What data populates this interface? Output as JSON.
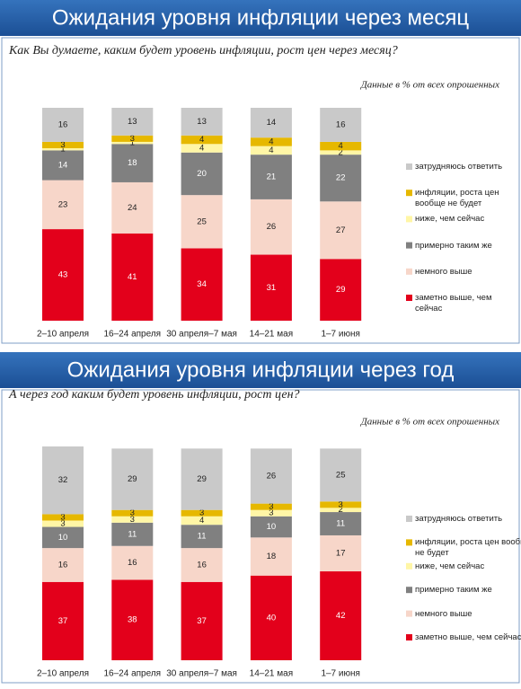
{
  "chart_data": [
    {
      "type": "stacked_bar",
      "title": "Ожидания уровня инфляции через месяц",
      "subtitle": "Как Вы думаете, каким будет уровень инфляции, рост цен через месяц?",
      "note": "Данные в % от всех опрошенных",
      "categories": [
        "2–10 апреля",
        "16–24 апреля",
        "30 апреля–7 мая",
        "14–21 мая",
        "1–7 июня"
      ],
      "series": [
        {
          "name": "заметно выше, чем сейчас",
          "color": "#e3001b",
          "values": [
            43,
            41,
            34,
            31,
            29
          ]
        },
        {
          "name": "немного выше",
          "color": "#f7d6c9",
          "values": [
            23,
            24,
            25,
            26,
            27
          ]
        },
        {
          "name": "примерно таким же",
          "color": "#808080",
          "values": [
            14,
            18,
            20,
            21,
            22
          ]
        },
        {
          "name": "ниже, чем сейчас",
          "color": "#fff6a6",
          "values": [
            1,
            1,
            4,
            4,
            2
          ]
        },
        {
          "name": "инфляции, роста цен вообще не будет",
          "color": "#e6b800",
          "values": [
            3,
            3,
            4,
            4,
            4
          ]
        },
        {
          "name": "затрудняюсь ответить",
          "color": "#c9c9c9",
          "values": [
            16,
            13,
            13,
            14,
            16
          ]
        }
      ]
    },
    {
      "type": "stacked_bar",
      "title": "Ожидания уровня инфляции через год",
      "subtitle": "А через год каким будет уровень инфляции, рост цен?",
      "note": "Данные в % от всех опрошенных",
      "categories": [
        "2–10 апреля",
        "16–24 апреля",
        "30 апреля–7 мая",
        "14–21 мая",
        "1–7 июня"
      ],
      "series": [
        {
          "name": "заметно выше, чем сейчас",
          "color": "#e3001b",
          "values": [
            37,
            38,
            37,
            40,
            42
          ]
        },
        {
          "name": "немного выше",
          "color": "#f7d6c9",
          "values": [
            16,
            16,
            16,
            18,
            17
          ]
        },
        {
          "name": "примерно таким же",
          "color": "#808080",
          "values": [
            10,
            11,
            11,
            10,
            11
          ]
        },
        {
          "name": "ниже, чем сейчас",
          "color": "#fff6a6",
          "values": [
            3,
            3,
            4,
            3,
            2
          ]
        },
        {
          "name": "инфляции, роста цен вообще не будет",
          "color": "#e6b800",
          "values": [
            3,
            3,
            3,
            3,
            3
          ]
        },
        {
          "name": "затрудняюсь ответить",
          "color": "#c9c9c9",
          "values": [
            32,
            29,
            29,
            26,
            25
          ]
        }
      ]
    }
  ]
}
